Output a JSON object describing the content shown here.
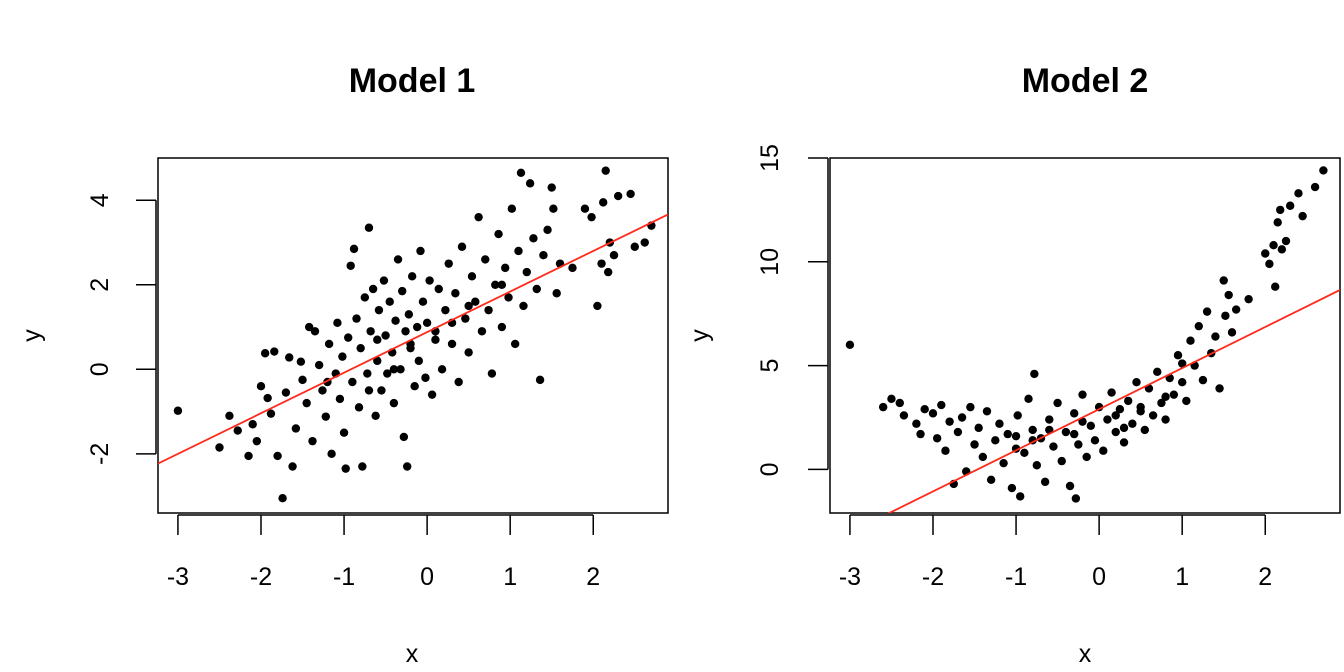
{
  "chart_data": [
    {
      "type": "scatter",
      "title": "Model 1",
      "xlabel": "x",
      "ylabel": "y",
      "xlim": [
        -3.24,
        2.9
      ],
      "ylim": [
        -3.4,
        5.0
      ],
      "xticks": [
        -3,
        -2,
        -1,
        0,
        1,
        2
      ],
      "yticks": [
        -2,
        0,
        2,
        4
      ],
      "grid": false,
      "point_color": "#000000",
      "fit_line": {
        "color": "#ff2a1a",
        "intercept": 0.88,
        "slope": 0.96
      },
      "points": [
        [
          -3.0,
          -0.98
        ],
        [
          -2.5,
          -1.85
        ],
        [
          -2.38,
          -1.1
        ],
        [
          -2.28,
          -1.45
        ],
        [
          -2.15,
          -2.05
        ],
        [
          -2.1,
          -1.3
        ],
        [
          -2.05,
          -1.7
        ],
        [
          -2.0,
          -0.4
        ],
        [
          -1.95,
          0.38
        ],
        [
          -1.92,
          -0.68
        ],
        [
          -1.88,
          -1.05
        ],
        [
          -1.84,
          0.42
        ],
        [
          -1.8,
          -2.05
        ],
        [
          -1.74,
          -3.05
        ],
        [
          -1.7,
          -0.55
        ],
        [
          -1.66,
          0.28
        ],
        [
          -1.62,
          -2.3
        ],
        [
          -1.58,
          -1.4
        ],
        [
          -1.52,
          0.18
        ],
        [
          -1.5,
          -0.25
        ],
        [
          -1.45,
          -0.8
        ],
        [
          -1.42,
          1.0
        ],
        [
          -1.38,
          -1.7
        ],
        [
          -1.35,
          0.9
        ],
        [
          -1.3,
          0.1
        ],
        [
          -1.26,
          -0.5
        ],
        [
          -1.22,
          -1.12
        ],
        [
          -1.18,
          0.6
        ],
        [
          -1.15,
          -2.0
        ],
        [
          -1.1,
          -0.1
        ],
        [
          -1.08,
          1.1
        ],
        [
          -1.05,
          -0.7
        ],
        [
          -1.02,
          0.3
        ],
        [
          -1.0,
          -1.5
        ],
        [
          -0.98,
          -2.35
        ],
        [
          -0.95,
          0.75
        ],
        [
          -0.92,
          2.45
        ],
        [
          -0.9,
          -0.3
        ],
        [
          -0.88,
          2.85
        ],
        [
          -0.85,
          1.2
        ],
        [
          -0.82,
          -0.9
        ],
        [
          -0.8,
          0.5
        ],
        [
          -0.78,
          -2.3
        ],
        [
          -0.75,
          1.7
        ],
        [
          -0.72,
          -0.1
        ],
        [
          -0.7,
          3.35
        ],
        [
          -0.68,
          0.9
        ],
        [
          -0.65,
          1.9
        ],
        [
          -0.62,
          -1.1
        ],
        [
          -0.6,
          0.2
        ],
        [
          -0.58,
          1.4
        ],
        [
          -0.55,
          -0.5
        ],
        [
          -0.52,
          2.1
        ],
        [
          -0.5,
          0.8
        ],
        [
          -0.48,
          -0.1
        ],
        [
          -0.45,
          1.6
        ],
        [
          -0.42,
          0.4
        ],
        [
          -0.4,
          -0.8
        ],
        [
          -0.38,
          1.15
        ],
        [
          -0.35,
          2.6
        ],
        [
          -0.32,
          0.0
        ],
        [
          -0.3,
          1.85
        ],
        [
          -0.28,
          -1.6
        ],
        [
          -0.26,
          0.9
        ],
        [
          -0.24,
          -2.3
        ],
        [
          -0.22,
          1.3
        ],
        [
          -0.2,
          0.5
        ],
        [
          -0.18,
          2.2
        ],
        [
          -0.15,
          -0.4
        ],
        [
          -0.12,
          1.0
        ],
        [
          -0.1,
          0.2
        ],
        [
          -0.08,
          2.8
        ],
        [
          -0.05,
          1.6
        ],
        [
          -0.02,
          -0.2
        ],
        [
          0.0,
          1.1
        ],
        [
          0.03,
          2.1
        ],
        [
          0.06,
          -0.6
        ],
        [
          0.1,
          0.7
        ],
        [
          0.14,
          1.9
        ],
        [
          0.18,
          0.0
        ],
        [
          0.22,
          1.4
        ],
        [
          0.26,
          2.5
        ],
        [
          0.3,
          0.6
        ],
        [
          0.34,
          1.8
        ],
        [
          0.38,
          -0.3
        ],
        [
          0.42,
          2.9
        ],
        [
          0.46,
          1.2
        ],
        [
          0.5,
          0.4
        ],
        [
          0.54,
          2.2
        ],
        [
          0.58,
          1.6
        ],
        [
          0.62,
          3.6
        ],
        [
          0.66,
          0.9
        ],
        [
          0.7,
          2.6
        ],
        [
          0.74,
          1.4
        ],
        [
          0.78,
          -0.1
        ],
        [
          0.82,
          2.0
        ],
        [
          0.86,
          3.2
        ],
        [
          0.9,
          1.0
        ],
        [
          0.94,
          2.4
        ],
        [
          0.98,
          1.7
        ],
        [
          1.02,
          3.8
        ],
        [
          1.06,
          0.6
        ],
        [
          1.1,
          2.8
        ],
        [
          1.13,
          4.65
        ],
        [
          1.16,
          1.5
        ],
        [
          1.2,
          2.3
        ],
        [
          1.24,
          4.4
        ],
        [
          1.28,
          3.1
        ],
        [
          1.32,
          1.9
        ],
        [
          1.36,
          -0.25
        ],
        [
          1.4,
          2.7
        ],
        [
          1.45,
          3.3
        ],
        [
          1.5,
          4.3
        ],
        [
          1.52,
          3.8
        ],
        [
          1.56,
          1.8
        ],
        [
          1.6,
          2.5
        ],
        [
          1.75,
          2.4
        ],
        [
          1.9,
          3.8
        ],
        [
          1.98,
          3.6
        ],
        [
          2.05,
          1.5
        ],
        [
          2.1,
          2.5
        ],
        [
          2.12,
          3.95
        ],
        [
          2.15,
          4.7
        ],
        [
          2.18,
          2.3
        ],
        [
          2.2,
          3.0
        ],
        [
          2.25,
          2.7
        ],
        [
          2.3,
          4.1
        ],
        [
          2.45,
          4.15
        ],
        [
          2.5,
          2.9
        ],
        [
          2.62,
          3.0
        ],
        [
          2.7,
          3.4
        ],
        [
          -0.7,
          -0.5
        ],
        [
          -0.4,
          0.0
        ],
        [
          0.3,
          1.1
        ],
        [
          -1.2,
          -0.3
        ],
        [
          0.9,
          2.0
        ],
        [
          0.1,
          0.9
        ],
        [
          -0.6,
          0.7
        ],
        [
          0.5,
          1.5
        ],
        [
          -0.2,
          0.6
        ]
      ]
    },
    {
      "type": "scatter",
      "title": "Model 2",
      "xlabel": "x",
      "ylabel": "y",
      "xlim": [
        -3.24,
        2.9
      ],
      "ylim": [
        -2.1,
        15.0
      ],
      "xticks": [
        -3,
        -2,
        -1,
        0,
        1,
        2
      ],
      "yticks": [
        0,
        5,
        10,
        15
      ],
      "grid": false,
      "point_color": "#000000",
      "fit_line": {
        "color": "#ff2a1a",
        "intercept": 2.9,
        "slope": 1.98
      },
      "points": [
        [
          -3.0,
          6.0
        ],
        [
          -2.6,
          3.0
        ],
        [
          -2.5,
          3.4
        ],
        [
          -2.4,
          3.2
        ],
        [
          -2.35,
          2.6
        ],
        [
          -2.2,
          2.2
        ],
        [
          -2.15,
          1.7
        ],
        [
          -2.1,
          2.9
        ],
        [
          -2.0,
          2.7
        ],
        [
          -1.95,
          1.5
        ],
        [
          -1.9,
          3.1
        ],
        [
          -1.85,
          0.9
        ],
        [
          -1.8,
          2.3
        ],
        [
          -1.75,
          -0.7
        ],
        [
          -1.7,
          1.8
        ],
        [
          -1.65,
          2.5
        ],
        [
          -1.6,
          -0.1
        ],
        [
          -1.55,
          3.0
        ],
        [
          -1.5,
          1.2
        ],
        [
          -1.45,
          2.0
        ],
        [
          -1.4,
          0.6
        ],
        [
          -1.35,
          2.8
        ],
        [
          -1.3,
          -0.5
        ],
        [
          -1.25,
          1.4
        ],
        [
          -1.2,
          2.2
        ],
        [
          -1.15,
          0.3
        ],
        [
          -1.1,
          1.7
        ],
        [
          -1.05,
          -0.9
        ],
        [
          -1.0,
          1.0
        ],
        [
          -0.98,
          2.6
        ],
        [
          -0.95,
          -1.3
        ],
        [
          -0.9,
          0.8
        ],
        [
          -0.85,
          3.4
        ],
        [
          -0.8,
          1.9
        ],
        [
          -0.78,
          4.6
        ],
        [
          -0.75,
          0.2
        ],
        [
          -0.7,
          1.5
        ],
        [
          -0.65,
          -0.6
        ],
        [
          -0.6,
          2.4
        ],
        [
          -0.55,
          1.1
        ],
        [
          -0.5,
          3.2
        ],
        [
          -0.45,
          0.4
        ],
        [
          -0.4,
          1.8
        ],
        [
          -0.35,
          -0.8
        ],
        [
          -0.3,
          2.7
        ],
        [
          -0.28,
          -1.4
        ],
        [
          -0.25,
          1.2
        ],
        [
          -0.2,
          3.6
        ],
        [
          -0.15,
          0.6
        ],
        [
          -0.1,
          2.1
        ],
        [
          -0.05,
          1.4
        ],
        [
          0.0,
          3.0
        ],
        [
          0.05,
          0.9
        ],
        [
          0.1,
          2.4
        ],
        [
          0.15,
          3.7
        ],
        [
          0.2,
          1.8
        ],
        [
          0.25,
          2.9
        ],
        [
          0.3,
          1.3
        ],
        [
          0.35,
          3.3
        ],
        [
          0.4,
          2.2
        ],
        [
          0.45,
          4.2
        ],
        [
          0.5,
          2.8
        ],
        [
          0.55,
          1.9
        ],
        [
          0.6,
          3.9
        ],
        [
          0.65,
          2.6
        ],
        [
          0.7,
          4.7
        ],
        [
          0.75,
          3.2
        ],
        [
          0.8,
          2.4
        ],
        [
          0.85,
          4.4
        ],
        [
          0.9,
          3.6
        ],
        [
          0.95,
          5.5
        ],
        [
          1.0,
          4.2
        ],
        [
          1.05,
          3.3
        ],
        [
          1.1,
          6.2
        ],
        [
          1.15,
          5.0
        ],
        [
          1.2,
          6.9
        ],
        [
          1.25,
          4.3
        ],
        [
          1.3,
          7.6
        ],
        [
          1.35,
          5.6
        ],
        [
          1.4,
          6.4
        ],
        [
          1.45,
          3.9
        ],
        [
          1.5,
          9.1
        ],
        [
          1.52,
          7.4
        ],
        [
          1.56,
          8.4
        ],
        [
          1.6,
          6.6
        ],
        [
          1.65,
          7.7
        ],
        [
          1.8,
          8.2
        ],
        [
          2.0,
          10.4
        ],
        [
          2.05,
          9.9
        ],
        [
          2.1,
          10.8
        ],
        [
          2.12,
          8.8
        ],
        [
          2.15,
          11.9
        ],
        [
          2.18,
          12.5
        ],
        [
          2.2,
          10.6
        ],
        [
          2.25,
          11.0
        ],
        [
          2.3,
          12.7
        ],
        [
          2.4,
          13.3
        ],
        [
          2.45,
          12.2
        ],
        [
          2.6,
          13.6
        ],
        [
          2.7,
          14.4
        ],
        [
          -0.6,
          1.9
        ],
        [
          -0.3,
          1.7
        ],
        [
          0.2,
          2.6
        ],
        [
          0.5,
          3.0
        ],
        [
          -1.0,
          1.6
        ],
        [
          0.8,
          3.5
        ],
        [
          -0.2,
          2.3
        ],
        [
          1.0,
          5.1
        ],
        [
          -0.8,
          1.4
        ],
        [
          0.3,
          2.0
        ]
      ]
    }
  ]
}
